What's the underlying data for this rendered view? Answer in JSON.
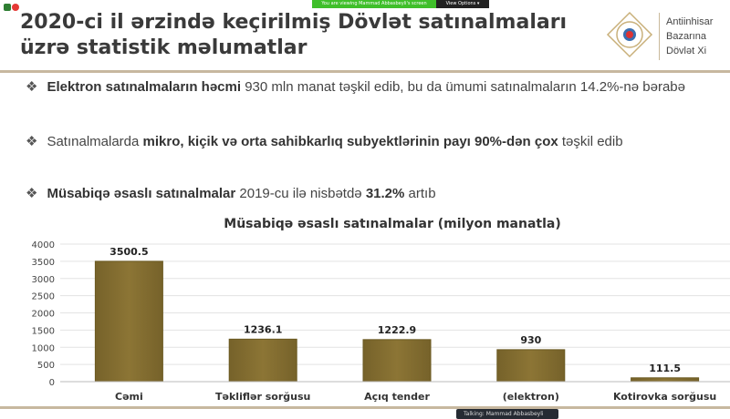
{
  "zoom": {
    "banner": "You are viewing Mammad Abbasbeyli's screen",
    "view_options": "View Options ▾",
    "talking": "Talking: Mammad Abbasbeyli"
  },
  "slide": {
    "title": "2020-ci il ərzində keçirilmiş Dövlət satınalmaları üzrə statistik məlumatlar",
    "org_lines": [
      "Antiinhisar",
      "Bazarına",
      "Dövlət Xi"
    ],
    "bullets": [
      {
        "parts": [
          {
            "t": "Elektron satınalmaların həcmi",
            "b": true
          },
          {
            "t": " 930 mln manat təşkil edib, bu da ümumi satınalmaların 14.2%-nə bərabə",
            "b": false
          }
        ]
      },
      {
        "parts": [
          {
            "t": "Satınalmalarda ",
            "b": false
          },
          {
            "t": "mikro, kiçik və orta sahibkarlıq subyektlərinin payı 90%-dən çox",
            "b": true
          },
          {
            "t": " təşkil edib",
            "b": false
          }
        ]
      },
      {
        "parts": [
          {
            "t": "Müsabiqə əsaslı satınalmalar",
            "b": true
          },
          {
            "t": " 2019-cu ilə nisbətdə ",
            "b": false
          },
          {
            "t": "31.2%",
            "b": true
          },
          {
            "t": " artıb",
            "b": false
          }
        ]
      }
    ]
  },
  "chart_data": {
    "type": "bar",
    "title": "Müsabiqə əsaslı satınalmalar (milyon manatla)",
    "categories": [
      "Cəmi",
      "Təkliflər sorğusu",
      "Açıq tender",
      "(elektron)",
      "Kotirovka sorğusu"
    ],
    "values": [
      3500.5,
      1236.1,
      1222.9,
      930,
      111.5
    ],
    "data_labels": [
      "3500.5",
      "1236.1",
      "1222.9",
      "930",
      "111.5"
    ],
    "ylim": [
      0,
      4000
    ],
    "yticks": [
      "0",
      "500",
      "1000",
      "1500",
      "2000",
      "2500",
      "3000",
      "3500",
      "4000"
    ],
    "grid": true,
    "bar_color": "#8c7535"
  }
}
